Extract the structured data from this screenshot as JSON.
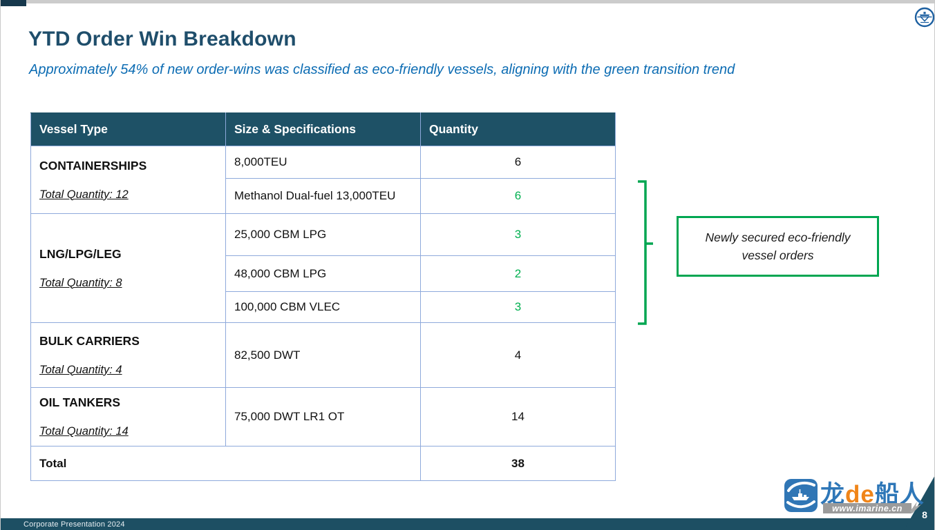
{
  "slide": {
    "title": "YTD Order Win Breakdown",
    "subtitle": "Approximately 54% of new order-wins was classified as eco-friendly vessels, aligning with the green transition trend",
    "footer": "Corporate Presentation 2024",
    "page_number": "8"
  },
  "table": {
    "headers": [
      "Vessel Type",
      "Size & Specifications",
      "Quantity"
    ],
    "groups": [
      {
        "vessel_type": "CONTAINERSHIPS",
        "total_label": "Total Quantity: 12",
        "rows": [
          {
            "spec": "8,000TEU",
            "qty": "6",
            "eco": false
          },
          {
            "spec": "Methanol Dual-fuel 13,000TEU",
            "qty": "6",
            "eco": true
          }
        ]
      },
      {
        "vessel_type": "LNG/LPG/LEG",
        "total_label": "Total Quantity: 8",
        "rows": [
          {
            "spec": "25,000 CBM LPG",
            "qty": "3",
            "eco": true
          },
          {
            "spec": "48,000 CBM LPG",
            "qty": "2",
            "eco": true
          },
          {
            "spec": "100,000 CBM VLEC",
            "qty": "3",
            "eco": true
          }
        ]
      },
      {
        "vessel_type": "BULK CARRIERS",
        "total_label": "Total Quantity: 4",
        "rows": [
          {
            "spec": "82,500 DWT",
            "qty": "4",
            "eco": false
          }
        ]
      },
      {
        "vessel_type": "OIL TANKERS",
        "total_label": "Total Quantity: 14",
        "rows": [
          {
            "spec": "75,000 DWT LR1 OT",
            "qty": "14",
            "eco": false
          }
        ]
      }
    ],
    "total_row": {
      "label": "Total",
      "value": "38"
    }
  },
  "callout": {
    "text": "Newly secured eco-friendly vessel orders"
  },
  "watermark": {
    "brand_part1": "龙",
    "brand_part2": "de",
    "brand_part3": "船人",
    "url": "www.imarine.cn"
  },
  "icons": {
    "top_logo": "ship-emblem-icon",
    "watermark_logo": "ship-logo-icon",
    "bracket": "eco-group-bracket"
  },
  "colors": {
    "header_bg": "#1e5166",
    "title_text": "#1f4e6b",
    "subtitle_text": "#0c6cb3",
    "eco_green": "#00b050",
    "callout_border_green": "#00a651",
    "table_border": "#8ea9db",
    "footer_bg": "#1d4f63",
    "brand_blue": "#2e77b8",
    "brand_orange": "#f08519",
    "band_gray": "#9b9b9b"
  }
}
